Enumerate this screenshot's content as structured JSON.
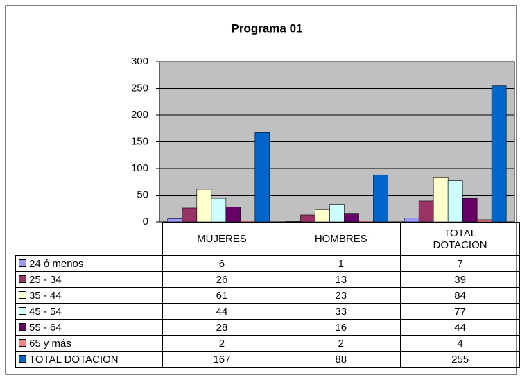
{
  "chart_data": {
    "type": "bar",
    "title": "Programa 01",
    "categories": [
      "MUJERES",
      "HOMBRES",
      "TOTAL DOTACION"
    ],
    "series": [
      {
        "name": "24 ó menos",
        "color": "#9999ff",
        "values": [
          6,
          1,
          7
        ]
      },
      {
        "name": "25 - 34",
        "color": "#993366",
        "values": [
          26,
          13,
          39
        ]
      },
      {
        "name": "35 - 44",
        "color": "#ffffcc",
        "values": [
          61,
          23,
          84
        ]
      },
      {
        "name": "45 - 54",
        "color": "#ccffff",
        "values": [
          44,
          33,
          77
        ]
      },
      {
        "name": "55 - 64",
        "color": "#660066",
        "values": [
          28,
          16,
          44
        ]
      },
      {
        "name": "65 y más",
        "color": "#ff8080",
        "values": [
          2,
          2,
          4
        ]
      },
      {
        "name": "TOTAL DOTACION",
        "color": "#0066cc",
        "values": [
          167,
          88,
          255
        ]
      }
    ],
    "ylim": [
      0,
      300
    ],
    "yticks": [
      0,
      50,
      100,
      150,
      200,
      250,
      300
    ],
    "grid": true
  }
}
